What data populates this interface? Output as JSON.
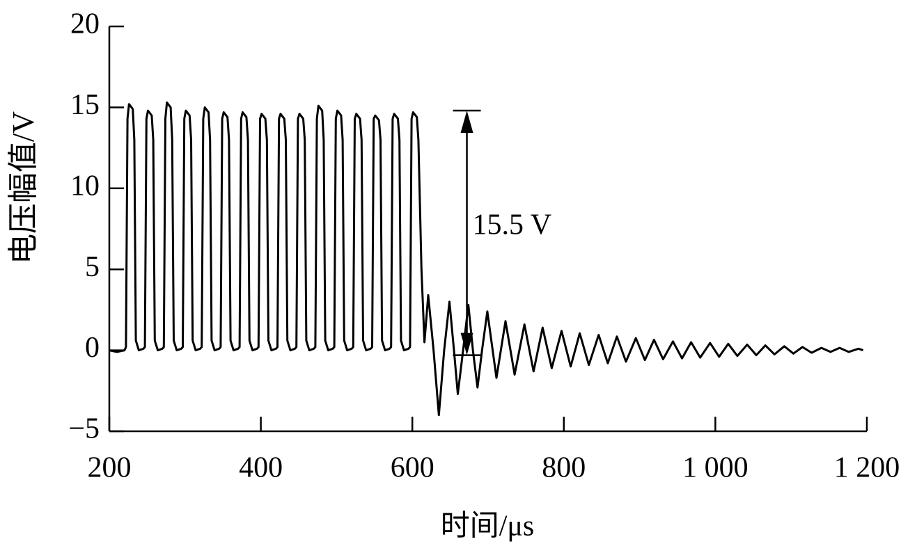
{
  "chart_data": {
    "type": "line",
    "xlabel": "时间/μs",
    "ylabel": "电压幅值/V",
    "color": "#000000",
    "xlim": [
      200,
      1200
    ],
    "ylim": [
      -5,
      20
    ],
    "xticks": [
      200,
      400,
      600,
      800,
      {
        "value": 1000,
        "label": "1 000"
      },
      {
        "value": 1200,
        "label": "1 200"
      }
    ],
    "yticks": [
      {
        "value": -5,
        "label": "−5"
      },
      0,
      5,
      10,
      15,
      20
    ],
    "annotations": [
      {
        "text": "15.5 V",
        "x": 672,
        "y_top": 14.8,
        "y_bottom": -0.3
      }
    ],
    "x": [
      200,
      210,
      220,
      222,
      224,
      226,
      231,
      233,
      235,
      239,
      245,
      247,
      249,
      251,
      256,
      258,
      260,
      264,
      270,
      272,
      274,
      276,
      281,
      283,
      285,
      289,
      295,
      297,
      299,
      301,
      306,
      308,
      310,
      314,
      320,
      322,
      324,
      326,
      331,
      333,
      335,
      339,
      345,
      347,
      349,
      351,
      356,
      358,
      360,
      364,
      370,
      372,
      374,
      376,
      381,
      383,
      385,
      389,
      395,
      397,
      399,
      401,
      406,
      408,
      410,
      414,
      420,
      422,
      424,
      426,
      431,
      433,
      435,
      439,
      445,
      447,
      449,
      451,
      456,
      458,
      460,
      464,
      470,
      472,
      474,
      476,
      481,
      483,
      485,
      489,
      495,
      497,
      499,
      501,
      506,
      508,
      510,
      514,
      520,
      522,
      524,
      526,
      531,
      533,
      535,
      539,
      545,
      547,
      549,
      551,
      556,
      558,
      560,
      564,
      570,
      572,
      574,
      576,
      581,
      583,
      585,
      589,
      595,
      597,
      599,
      601,
      606,
      608,
      612,
      616,
      621,
      628,
      635,
      642,
      649,
      655,
      660,
      667,
      674,
      680,
      686,
      692,
      699,
      711,
      723,
      735,
      748,
      760,
      772,
      784,
      797,
      809,
      821,
      833,
      846,
      858,
      870,
      882,
      895,
      907,
      919,
      931,
      944,
      956,
      968,
      980,
      993,
      1005,
      1017,
      1029,
      1042,
      1054,
      1066,
      1078,
      1091,
      1103,
      1115,
      1127,
      1140,
      1152,
      1164,
      1176,
      1189,
      1195
    ],
    "values": [
      0,
      -0.1,
      0,
      0.2,
      14.3,
      15.2,
      14.9,
      13,
      0.6,
      0,
      0.1,
      0.2,
      14.3,
      14.8,
      14.5,
      13,
      0.6,
      0,
      0.1,
      0.2,
      14.3,
      15.3,
      15.0,
      13,
      0.6,
      0,
      0.1,
      0.2,
      14.3,
      14.8,
      14.5,
      13,
      0.6,
      0,
      0.1,
      0.2,
      14.3,
      15.0,
      14.7,
      13,
      0.6,
      0,
      0.1,
      0.2,
      14.3,
      14.7,
      14.4,
      13,
      0.6,
      0,
      0.1,
      0.2,
      14.3,
      14.7,
      14.4,
      13,
      0.6,
      0,
      0.1,
      0.2,
      14.3,
      14.6,
      14.3,
      13,
      0.6,
      0,
      0.1,
      0.2,
      14.3,
      14.6,
      14.3,
      13,
      0.6,
      0,
      0.1,
      0.2,
      14.3,
      14.6,
      14.3,
      13,
      0.6,
      0,
      0.1,
      0.2,
      14.3,
      15.1,
      14.8,
      13,
      0.6,
      0,
      0.1,
      0.2,
      14.3,
      14.8,
      14.5,
      13,
      0.6,
      0,
      0.1,
      0.2,
      14.3,
      14.6,
      14.3,
      13,
      0.6,
      0,
      0.1,
      0.2,
      14.3,
      14.5,
      14.2,
      13,
      0.6,
      0,
      0.1,
      0.2,
      14.3,
      14.6,
      14.3,
      13,
      0.6,
      0,
      0.1,
      0.2,
      14.3,
      14.7,
      14.4,
      13,
      5,
      0.5,
      3.4,
      0,
      -4,
      0,
      3,
      0,
      -2.7,
      0,
      2.8,
      0,
      -2.3,
      0,
      2.4,
      -1.7,
      1.8,
      -1.5,
      1.6,
      -1.3,
      1.4,
      -1.1,
      1.2,
      -1.0,
      1.05,
      -0.9,
      0.95,
      -0.8,
      0.85,
      -0.7,
      0.75,
      -0.6,
      0.65,
      -0.55,
      0.55,
      -0.5,
      0.5,
      -0.45,
      0.45,
      -0.4,
      0.4,
      -0.35,
      0.35,
      -0.3,
      0.3,
      -0.25,
      0.25,
      -0.2,
      0.2,
      -0.15,
      0.15,
      -0.1,
      0.15,
      -0.1,
      0.1,
      0
    ]
  }
}
